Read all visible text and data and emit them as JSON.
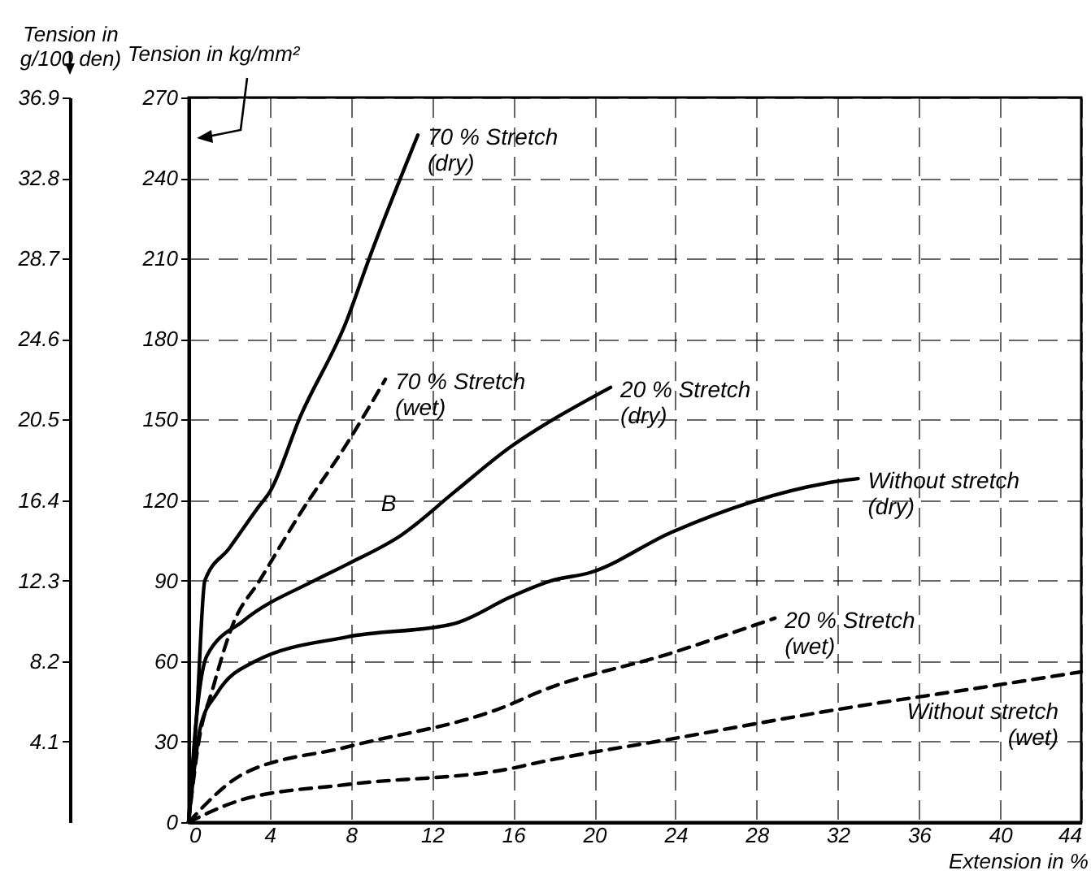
{
  "chart_data": {
    "type": "line",
    "xlabel": "Extension in %",
    "ylabel": "Tension in kg/mm²",
    "y2label": "Tension in g/100 den)",
    "xlim": [
      0,
      44
    ],
    "xticks": [
      0,
      4,
      8,
      12,
      16,
      20,
      24,
      28,
      32,
      36,
      40,
      44
    ],
    "ylim": [
      0,
      270
    ],
    "yticks": [
      0,
      30,
      60,
      90,
      120,
      150,
      180,
      210,
      240,
      270
    ],
    "y2lim": [
      0,
      36.9
    ],
    "y2ticks": [
      4.1,
      8.2,
      12.3,
      16.4,
      20.5,
      24.6,
      28.7,
      32.8,
      36.9
    ],
    "grid": true,
    "series": [
      {
        "name": "70 % Stretch (dry)",
        "color": "#000000",
        "line_style": "solid",
        "x": [
          0,
          0.4,
          0.8,
          2,
          3.5,
          4,
          5.5,
          7.8,
          8.9,
          11.3
        ],
        "values": [
          0,
          40,
          90,
          102,
          118,
          123,
          151,
          187,
          210,
          256
        ]
      },
      {
        "name": "70 % Stretch (wet)",
        "color": "#000000",
        "line_style": "dashed",
        "x": [
          0,
          0.5,
          1.2,
          2.2,
          3.5,
          5.5,
          7.8,
          9.7
        ],
        "values": [
          0,
          30,
          50,
          74,
          90,
          115,
          141,
          165
        ]
      },
      {
        "name": "20 % Stretch (dry)",
        "color": "#000000",
        "line_style": "solid",
        "x": [
          0,
          0.4,
          0.9,
          2.7,
          6.2,
          7.8,
          10.5,
          13.1,
          15.9,
          17.1,
          20.8
        ],
        "values": [
          0,
          40,
          62,
          75,
          90,
          96,
          107,
          123,
          140,
          146,
          162
        ]
      },
      {
        "name": "Without stretch (dry)",
        "color": "#000000",
        "line_style": "solid",
        "x": [
          0,
          0.6,
          1.4,
          3.3,
          7.8,
          13.1,
          15.9,
          17.9,
          19.8,
          23.8,
          32,
          33
        ],
        "values": [
          0,
          36,
          48,
          60,
          69,
          74,
          84,
          90,
          93,
          108,
          127,
          128
        ]
      },
      {
        "name": "20 % Stretch (wet)",
        "color": "#000000",
        "line_style": "dashed",
        "x": [
          0,
          2.7,
          7.8,
          15.9,
          17.1,
          23.8,
          28.9
        ],
        "values": [
          0,
          18,
          28,
          44,
          48,
          63,
          76
        ]
      },
      {
        "name": "Without stretch (wet)",
        "color": "#000000",
        "line_style": "dashed",
        "x": [
          0,
          2.7,
          7.8,
          15.9,
          17.1,
          23.8,
          32,
          39.8,
          44
        ],
        "values": [
          0,
          8.5,
          14,
          20,
          22,
          31,
          42,
          51,
          56
        ]
      }
    ],
    "annotations": [
      {
        "text": "B",
        "x": 10.5,
        "y": 107
      }
    ]
  }
}
